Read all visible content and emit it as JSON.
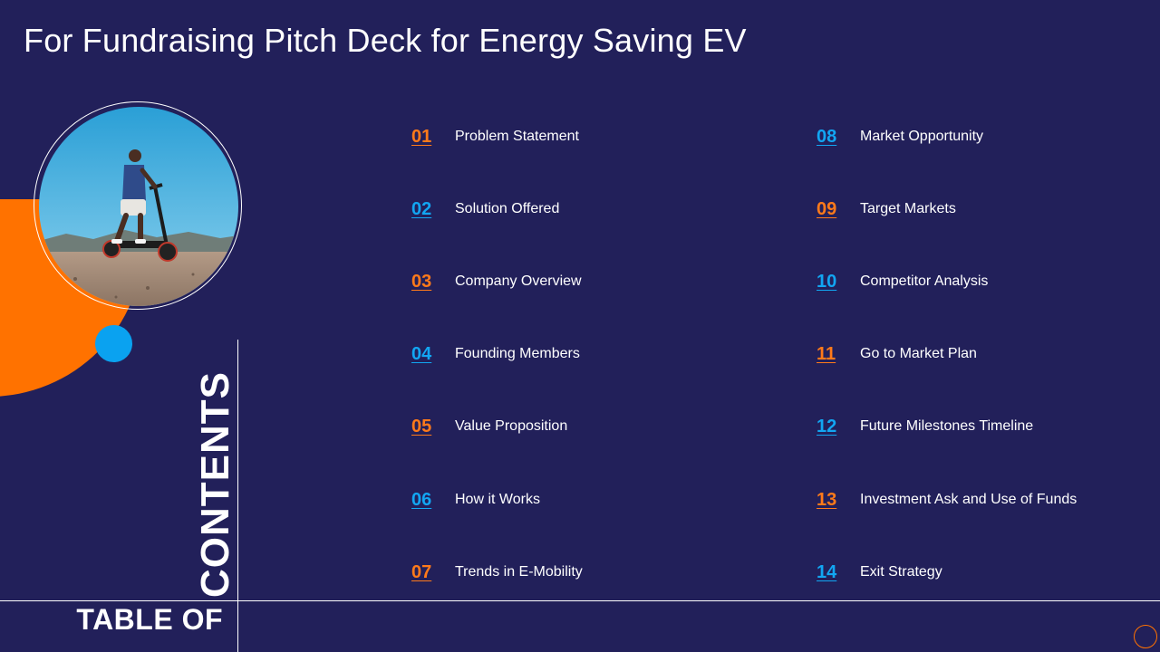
{
  "slide": {
    "title": "For Fundraising Pitch Deck for Energy Saving EV",
    "heading_line1": "TABLE OF",
    "heading_line2": "CONTENTS"
  },
  "colors": {
    "background": "#22205a",
    "accent_orange": "#ff7200",
    "accent_blue": "#0aa2f0",
    "text": "#ffffff"
  },
  "toc": [
    {
      "num": "01",
      "label": "Problem Statement",
      "color": "orange"
    },
    {
      "num": "02",
      "label": "Solution Offered",
      "color": "blue"
    },
    {
      "num": "03",
      "label": "Company Overview",
      "color": "orange"
    },
    {
      "num": "04",
      "label": "Founding Members",
      "color": "blue"
    },
    {
      "num": "05",
      "label": "Value Proposition",
      "color": "orange"
    },
    {
      "num": "06",
      "label": "How it Works",
      "color": "blue"
    },
    {
      "num": "07",
      "label": "Trends in E-Mobility",
      "color": "orange"
    },
    {
      "num": "08",
      "label": "Market Opportunity",
      "color": "blue"
    },
    {
      "num": "09",
      "label": "Target Markets",
      "color": "orange"
    },
    {
      "num": "10",
      "label": "Competitor Analysis",
      "color": "blue"
    },
    {
      "num": "11",
      "label": "Go to Market Plan",
      "color": "orange"
    },
    {
      "num": "12",
      "label": "Future Milestones Timeline",
      "color": "blue"
    },
    {
      "num": "13",
      "label": "Investment Ask and Use of Funds",
      "color": "orange"
    },
    {
      "num": "14",
      "label": "Exit Strategy",
      "color": "blue"
    }
  ],
  "image": {
    "icon": "man-on-electric-scooter-photo"
  }
}
